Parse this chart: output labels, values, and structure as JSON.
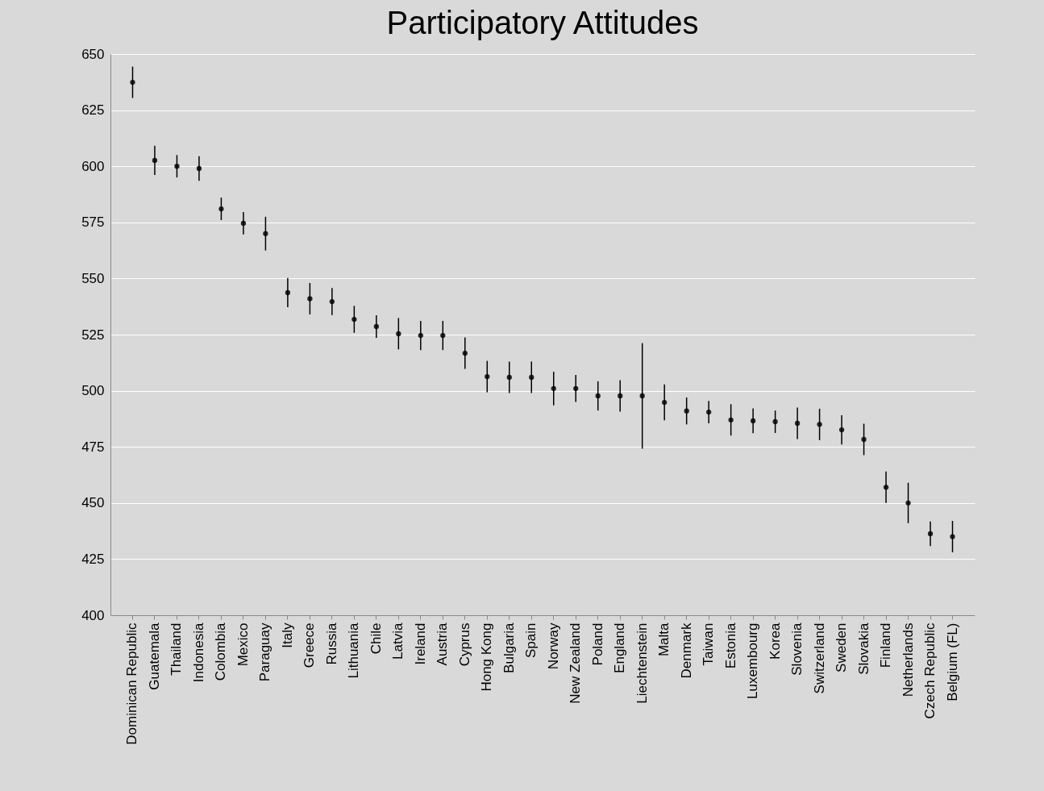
{
  "chart_data": {
    "type": "scatter",
    "title": "Participatory Attitudes",
    "categories": [
      "Dominican Republic",
      "Guatemala",
      "Thailand",
      "Indonesia",
      "Colombia",
      "Mexico",
      "Paraguay",
      "Italy",
      "Greece",
      "Russia",
      "Lithuania",
      "Chile",
      "Latvia",
      "Ireland",
      "Austria",
      "Cyprus",
      "Hong Kong",
      "Bulgaria",
      "Spain",
      "Norway",
      "New Zealand",
      "Poland",
      "England",
      "Liechtenstein",
      "Malta",
      "Denmark",
      "Taiwan",
      "Estonia",
      "Luxembourg",
      "Korea",
      "Slovenia",
      "Switzerland",
      "Sweden",
      "Slovakia",
      "Finland",
      "Netherlands",
      "Czech Republic",
      "Belgium (FL)"
    ],
    "values": [
      637.4,
      602.6,
      600,
      599,
      581,
      574.6,
      570,
      543.7,
      541,
      539.7,
      531.8,
      528.6,
      525.4,
      524.6,
      524.6,
      516.7,
      506.3,
      506,
      506,
      501,
      501,
      497.7,
      497.7,
      497.7,
      494.8,
      491,
      490.5,
      487,
      486.6,
      486.2,
      485.5,
      485,
      482.6,
      478.3,
      457,
      450,
      436.3,
      435
    ],
    "errors": [
      7,
      6.5,
      5,
      5.5,
      5,
      5,
      7.5,
      6.5,
      7,
      6,
      6,
      5,
      7,
      6.5,
      6.5,
      7,
      7,
      7,
      7,
      7.5,
      6,
      6.5,
      7,
      23.5,
      8,
      6,
      5,
      7,
      5.5,
      5,
      7,
      7,
      6.5,
      7,
      7,
      9,
      5.5,
      7
    ],
    "color": "#262626",
    "ylim": [
      400,
      650
    ],
    "yticks": [
      400,
      425,
      450,
      475,
      500,
      525,
      550,
      575,
      600,
      625,
      650
    ],
    "grid": "y",
    "marker": "circle"
  }
}
